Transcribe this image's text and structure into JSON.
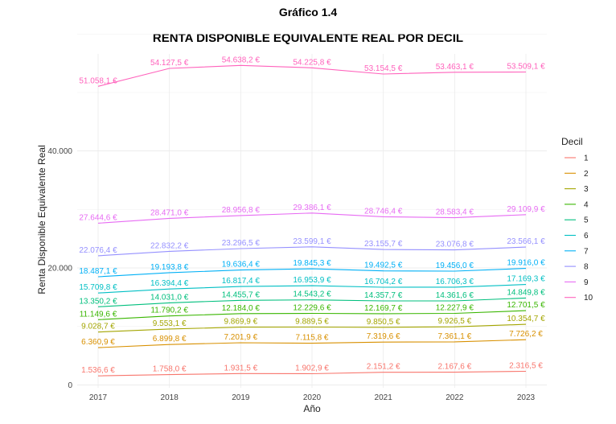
{
  "chart_data": {
    "type": "line",
    "figure_label": "Gráfico 1.4",
    "title": "RENTA DISPONIBLE EQUIVALENTE REAL POR DECIL",
    "xlabel": "Año",
    "ylabel": "Renta Disponible Equivalente Real",
    "x": [
      2017,
      2018,
      2019,
      2020,
      2021,
      2022,
      2023
    ],
    "x_tick_labels": [
      "2017",
      "2018",
      "2019",
      "2020",
      "2021",
      "2022",
      "2023"
    ],
    "y_ticks": [
      0,
      20000,
      40000
    ],
    "y_tick_labels": [
      "0",
      "20.000",
      "40.000"
    ],
    "ylim": [
      -500,
      56600
    ],
    "grid": true,
    "legend": {
      "title": "Decil",
      "position": "right"
    },
    "series": [
      {
        "name": "1",
        "color": "#F8766D",
        "values": [
          1536.6,
          1758.0,
          1931.5,
          1902.9,
          2151.2,
          2167.6,
          2316.5
        ],
        "labels": [
          "1.536,6 €",
          "1.758,0 €",
          "1.931,5 €",
          "1.902,9 €",
          "2.151,2 €",
          "2.167,6 €",
          "2.316,5 €"
        ]
      },
      {
        "name": "2",
        "color": "#D89000",
        "values": [
          6360.9,
          6899.8,
          7201.9,
          7115.8,
          7319.6,
          7361.1,
          7726.2
        ],
        "labels": [
          "6.360,9 €",
          "6.899,8 €",
          "7.201,9 €",
          "7.115,8 €",
          "7.319,6 €",
          "7.361,1 €",
          "7.726,2 €"
        ]
      },
      {
        "name": "3",
        "color": "#A3A500",
        "values": [
          9028.7,
          9553.1,
          9869.9,
          9889.5,
          9850.5,
          9926.5,
          10354.7
        ],
        "labels": [
          "9.028,7 €",
          "9.553,1 €",
          "9.869,9 €",
          "9.889,5 €",
          "9.850,5 €",
          "9.926,5 €",
          "10.354,7 €"
        ]
      },
      {
        "name": "4",
        "color": "#39B600",
        "values": [
          11149.6,
          11790.2,
          12184.0,
          12229.6,
          12169.7,
          12227.9,
          12701.5
        ],
        "labels": [
          "11.149,6 €",
          "11.790,2 €",
          "12.184,0 €",
          "12.229,6 €",
          "12.169,7 €",
          "12.227,9 €",
          "12.701,5 €"
        ]
      },
      {
        "name": "5",
        "color": "#00BF7D",
        "values": [
          13350.2,
          14031.0,
          14455.7,
          14543.2,
          14357.7,
          14361.6,
          14849.8
        ],
        "labels": [
          "13.350,2 €",
          "14.031,0 €",
          "14.455,7 €",
          "14.543,2 €",
          "14.357,7 €",
          "14.361,6 €",
          "14.849,8 €"
        ]
      },
      {
        "name": "6",
        "color": "#00BFC4",
        "values": [
          15709.8,
          16394.4,
          16817.4,
          16953.9,
          16704.2,
          16706.3,
          17169.3
        ],
        "labels": [
          "15.709,8 €",
          "16.394,4 €",
          "16.817,4 €",
          "16.953,9 €",
          "16.704,2 €",
          "16.706,3 €",
          "17.169,3 €"
        ]
      },
      {
        "name": "7",
        "color": "#00B0F6",
        "values": [
          18487.1,
          19193.8,
          19636.4,
          19845.3,
          19492.5,
          19456.0,
          19916.0
        ],
        "labels": [
          "18.487,1 €",
          "19.193,8 €",
          "19.636,4 €",
          "19.845,3 €",
          "19.492,5 €",
          "19.456,0 €",
          "19.916,0 €"
        ]
      },
      {
        "name": "8",
        "color": "#9590FF",
        "values": [
          22076.4,
          22832.2,
          23296.5,
          23599.1,
          23155.7,
          23076.8,
          23566.1
        ],
        "labels": [
          "22.076,4 €",
          "22.832,2 €",
          "23.296,5 €",
          "23.599,1 €",
          "23.155,7 €",
          "23.076,8 €",
          "23.566,1 €"
        ]
      },
      {
        "name": "9",
        "color": "#E76BF3",
        "values": [
          27644.6,
          28471.0,
          28956.8,
          29386.1,
          28746.4,
          28583.4,
          29109.9
        ],
        "labels": [
          "27.644,6 €",
          "28.471,0 €",
          "28.956,8 €",
          "29.386,1 €",
          "28.746,4 €",
          "28.583,4 €",
          "29.109,9 €"
        ]
      },
      {
        "name": "10",
        "color": "#FF62BC",
        "values": [
          51058.1,
          54127.5,
          54638.2,
          54225.8,
          53154.5,
          53463.1,
          53509.1
        ],
        "labels": [
          "51.058,1 €",
          "54.127,5 €",
          "54.638,2 €",
          "54.225,8 €",
          "53.154,5 €",
          "53.463,1 €",
          "53.509,1 €"
        ]
      }
    ]
  }
}
